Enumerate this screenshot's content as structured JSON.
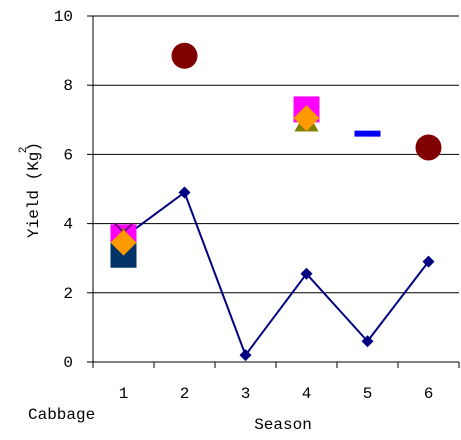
{
  "chart_data": {
    "type": "scatter",
    "xlabel": "Season",
    "ylabel": "Yield (Kg)",
    "ylabel_superscript": "2",
    "note": "Cabbage",
    "xlim": [
      0.5,
      6.5
    ],
    "ylim": [
      0,
      10
    ],
    "x_ticks": [
      1,
      2,
      3,
      4,
      5,
      6
    ],
    "y_ticks": [
      0,
      2,
      4,
      6,
      8,
      10
    ],
    "grid": "horizontal",
    "legend": "none",
    "series": [
      {
        "render": "line-diamond",
        "color": "#000080",
        "points": [
          [
            1,
            3.6
          ],
          [
            2,
            4.9
          ],
          [
            3,
            0.2
          ],
          [
            4,
            2.55
          ],
          [
            5,
            0.6
          ],
          [
            6,
            2.9
          ]
        ]
      },
      {
        "render": "circle",
        "color": "#800000",
        "points": [
          [
            2,
            8.85
          ],
          [
            6,
            6.2
          ]
        ]
      },
      {
        "render": "square",
        "color": "#FF00FF",
        "points": [
          [
            1,
            3.6
          ],
          [
            4,
            7.3
          ]
        ]
      },
      {
        "render": "triangle",
        "color": "#808000",
        "points": [
          [
            1,
            3.55
          ],
          [
            4,
            6.95
          ]
        ]
      },
      {
        "render": "square",
        "color": "#003366",
        "points": [
          [
            1,
            3.1
          ]
        ]
      },
      {
        "render": "cross",
        "color": "#800080",
        "points": [
          [
            1,
            3.75
          ]
        ]
      },
      {
        "render": "dash",
        "color": "#0000FF",
        "points": [
          [
            5,
            6.6
          ]
        ]
      },
      {
        "render": "diamond",
        "color": "#FF9900",
        "points": [
          [
            1,
            3.45
          ],
          [
            4,
            7.05
          ]
        ]
      }
    ]
  }
}
